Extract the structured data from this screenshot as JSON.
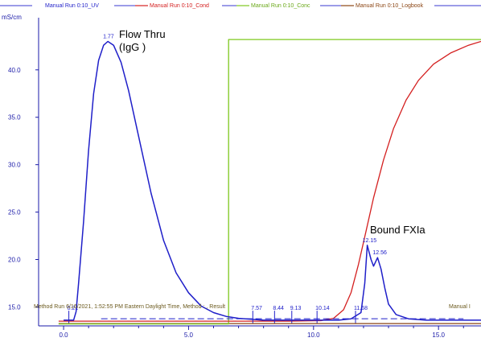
{
  "legend": [
    {
      "label": "Manual Run 0:10_UV",
      "color": "#1f1fc9"
    },
    {
      "label": "Manual Run 0:10_Cond",
      "color": "#d42020"
    },
    {
      "label": "Manual Run 0:10_Conc",
      "color": "#7ec81e"
    },
    {
      "label": "Manual Run 0:10_Logbook",
      "color": "#8b4513"
    },
    {
      "label": "",
      "color": "#1f1fc9"
    }
  ],
  "axis": {
    "y_unit": "mS/cm",
    "y_ticks": [
      "15.0",
      "20.0",
      "25.0",
      "30.0",
      "35.0",
      "40.0"
    ],
    "x_ticks": [
      "0.0",
      "5.0",
      "10.0",
      "15.0"
    ]
  },
  "annotations": {
    "flow_thru": [
      "Flow Thru",
      "(IgG )"
    ],
    "bound": "Bound FXIa",
    "method_run": "Method Run 6/16/2021, 1:52:55 PM Eastern Daylight Time, Method : , Result",
    "manual_right": "Manual I"
  },
  "peak_labels": [
    "1.77",
    "0.21",
    "7.57",
    "8.44",
    "9.13",
    "10.14",
    "11.68",
    "12.15",
    "12.56"
  ],
  "chart_data": {
    "type": "line",
    "title": "",
    "xlabel": "",
    "ylabel": "mS/cm",
    "xlim": [
      -1.0,
      16.7
    ],
    "ylim": [
      13.0,
      45.5
    ],
    "x_ticks": [
      0,
      5,
      10,
      15
    ],
    "y_ticks": [
      15,
      20,
      25,
      30,
      35,
      40
    ],
    "grid": false,
    "legend_position": "top",
    "series": [
      {
        "name": "Manual Run 0:10_UV",
        "color": "#1f1fc9",
        "points": [
          [
            0.0,
            13.6
          ],
          [
            0.4,
            13.6
          ],
          [
            0.5,
            14.5
          ],
          [
            0.6,
            17.5
          ],
          [
            0.8,
            24.0
          ],
          [
            1.0,
            31.5
          ],
          [
            1.2,
            37.5
          ],
          [
            1.4,
            41.0
          ],
          [
            1.6,
            42.6
          ],
          [
            1.77,
            43.0
          ],
          [
            2.0,
            42.6
          ],
          [
            2.3,
            40.8
          ],
          [
            2.6,
            37.8
          ],
          [
            3.0,
            33.0
          ],
          [
            3.5,
            27.0
          ],
          [
            4.0,
            22.0
          ],
          [
            4.5,
            18.6
          ],
          [
            5.0,
            16.5
          ],
          [
            5.5,
            15.1
          ],
          [
            6.0,
            14.4
          ],
          [
            6.5,
            14.0
          ],
          [
            7.0,
            13.8
          ],
          [
            8.0,
            13.6
          ],
          [
            9.0,
            13.6
          ],
          [
            10.0,
            13.6
          ],
          [
            11.0,
            13.6
          ],
          [
            11.5,
            13.75
          ],
          [
            11.9,
            14.4
          ],
          [
            12.05,
            17.5
          ],
          [
            12.15,
            21.5
          ],
          [
            12.3,
            20.0
          ],
          [
            12.4,
            19.3
          ],
          [
            12.56,
            20.2
          ],
          [
            12.7,
            19.0
          ],
          [
            12.85,
            17.0
          ],
          [
            13.0,
            15.3
          ],
          [
            13.3,
            14.2
          ],
          [
            13.8,
            13.75
          ],
          [
            14.5,
            13.6
          ],
          [
            16.7,
            13.6
          ]
        ]
      },
      {
        "name": "Manual Run 0:10_Cond",
        "color": "#d42020",
        "points": [
          [
            -0.2,
            13.5
          ],
          [
            6.6,
            13.5
          ],
          [
            9.0,
            13.5
          ],
          [
            10.3,
            13.55
          ],
          [
            10.8,
            13.8
          ],
          [
            11.2,
            14.7
          ],
          [
            11.5,
            16.5
          ],
          [
            11.8,
            19.5
          ],
          [
            12.1,
            23.0
          ],
          [
            12.4,
            26.5
          ],
          [
            12.8,
            30.5
          ],
          [
            13.2,
            33.8
          ],
          [
            13.7,
            36.8
          ],
          [
            14.2,
            38.9
          ],
          [
            14.8,
            40.6
          ],
          [
            15.5,
            41.8
          ],
          [
            16.2,
            42.6
          ],
          [
            16.7,
            43.0
          ]
        ]
      },
      {
        "name": "Manual Run 0:10_Conc",
        "color": "#7ec81e",
        "points": [
          [
            -0.2,
            13.2
          ],
          [
            6.6,
            13.2
          ],
          [
            6.6,
            43.2
          ],
          [
            16.7,
            43.2
          ]
        ]
      },
      {
        "name": "Manual Run 0:10_Logbook",
        "color": "#8b4513",
        "points": [
          [
            -0.2,
            13.25
          ],
          [
            16.7,
            13.25
          ]
        ]
      }
    ],
    "peaks": [
      {
        "x": 1.77,
        "y": 43.0,
        "label": "1.77"
      },
      {
        "x": 0.21,
        "y": 14.0,
        "label": "0.21"
      },
      {
        "x": 7.57,
        "y": 13.7,
        "label": "7.57"
      },
      {
        "x": 8.44,
        "y": 13.7,
        "label": "8.44"
      },
      {
        "x": 9.13,
        "y": 13.7,
        "label": "9.13"
      },
      {
        "x": 10.14,
        "y": 13.7,
        "label": "10.14"
      },
      {
        "x": 11.68,
        "y": 14.0,
        "label": "11.68"
      },
      {
        "x": 12.15,
        "y": 21.5,
        "label": "12.15"
      },
      {
        "x": 12.56,
        "y": 20.2,
        "label": "12.56"
      }
    ]
  }
}
